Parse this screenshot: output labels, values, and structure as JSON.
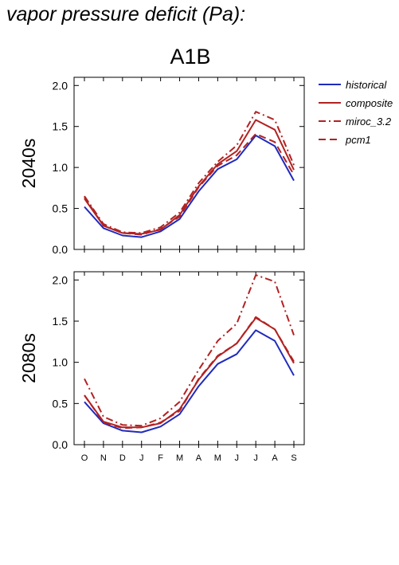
{
  "heading": "vapor pressure deficit (Pa):",
  "scenario": "A1B",
  "chart_data": {
    "type": "line",
    "categories": [
      "O",
      "N",
      "D",
      "J",
      "F",
      "M",
      "A",
      "M",
      "J",
      "J",
      "A",
      "S"
    ],
    "ylim": [
      0,
      2.1
    ],
    "yticks": [
      "0.0",
      "0.5",
      "1.0",
      "1.5",
      "2.0"
    ],
    "legend_position": "top-right, outside plot",
    "legend": [
      {
        "name": "historical",
        "color": "#1f2bbd",
        "dash": "solid"
      },
      {
        "name": "composite",
        "color": "#b22222",
        "dash": "solid"
      },
      {
        "name": "miroc_3.2",
        "color": "#b22222",
        "dash": "dash-dot"
      },
      {
        "name": "pcm1",
        "color": "#b22222",
        "dash": "dashed"
      }
    ],
    "panels": [
      {
        "ylabel": "2040s",
        "series": [
          {
            "name": "historical",
            "values": [
              0.52,
              0.26,
              0.17,
              0.15,
              0.22,
              0.37,
              0.71,
              0.98,
              1.1,
              1.39,
              1.26,
              0.84
            ]
          },
          {
            "name": "composite",
            "values": [
              0.62,
              0.29,
              0.2,
              0.19,
              0.24,
              0.42,
              0.77,
              1.04,
              1.2,
              1.58,
              1.46,
              0.97
            ]
          },
          {
            "name": "miroc_3.2",
            "values": [
              0.65,
              0.31,
              0.21,
              0.2,
              0.27,
              0.45,
              0.81,
              1.07,
              1.27,
              1.68,
              1.58,
              1.03
            ]
          },
          {
            "name": "pcm1",
            "values": [
              0.64,
              0.29,
              0.2,
              0.18,
              0.25,
              0.4,
              0.76,
              1.02,
              1.15,
              1.41,
              1.31,
              0.91
            ]
          }
        ]
      },
      {
        "ylabel": "2080s",
        "series": [
          {
            "name": "historical",
            "values": [
              0.52,
              0.26,
              0.17,
              0.15,
              0.22,
              0.37,
              0.71,
              0.98,
              1.1,
              1.39,
              1.26,
              0.84
            ]
          },
          {
            "name": "composite",
            "values": [
              0.6,
              0.28,
              0.21,
              0.21,
              0.26,
              0.43,
              0.79,
              1.07,
              1.23,
              1.54,
              1.4,
              0.99
            ]
          },
          {
            "name": "miroc_3.2",
            "values": [
              0.8,
              0.34,
              0.24,
              0.23,
              0.32,
              0.52,
              0.91,
              1.26,
              1.47,
              2.06,
              1.98,
              1.33
            ]
          },
          {
            "name": "pcm1",
            "values": [
              0.6,
              0.27,
              0.2,
              0.21,
              0.27,
              0.41,
              0.8,
              1.08,
              1.23,
              1.55,
              1.4,
              1.01
            ]
          }
        ]
      }
    ]
  }
}
